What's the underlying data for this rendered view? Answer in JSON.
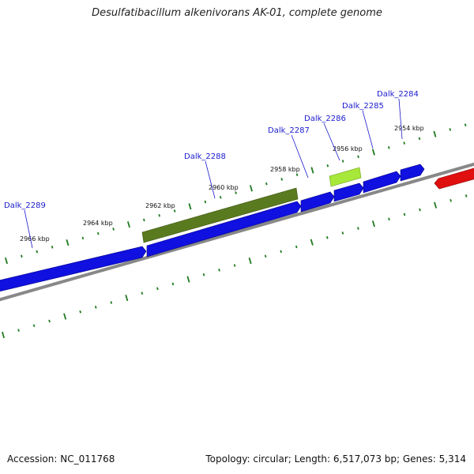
{
  "title": "Desulfatibacillum alkenivorans AK-01, complete genome",
  "footer": {
    "accession": "Accession: NC_011768",
    "summary": "Topology: circular; Length: 6,517,073 bp; Genes: 5,314"
  },
  "colors": {
    "backbone": "#888888",
    "tick": "#1f7a1f",
    "gene_forward": "#1010e0",
    "gene_reverse": "#e01010",
    "gene_highlight_dark": "#5a7a1f",
    "gene_highlight_light": "#a8e83a",
    "gene_label": "#1a1acc"
  },
  "map": {
    "scale_labels": [
      "2954 kbp",
      "2956 kbp",
      "2958 kbp",
      "2960 kbp",
      "2962 kbp",
      "2964 kbp",
      "2966 kbp"
    ],
    "gene_labels": [
      "Dalk_2284",
      "Dalk_2285",
      "Dalk_2286",
      "Dalk_2287",
      "Dalk_2288",
      "Dalk_2289"
    ]
  }
}
